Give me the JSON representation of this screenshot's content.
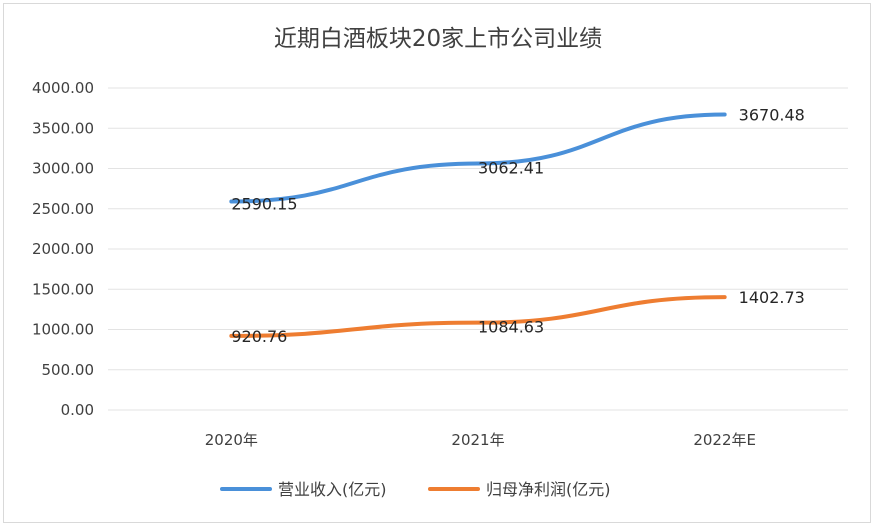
{
  "chart_data": {
    "type": "line",
    "title": "近期白酒板块20家上市公司业绩",
    "categories": [
      "2020年",
      "2021年",
      "2022年E"
    ],
    "ylim": [
      0,
      4000
    ],
    "yticks": [
      "4000.00",
      "3500.00",
      "3000.00",
      "2500.00",
      "2000.00",
      "1500.00",
      "1000.00",
      "500.00",
      "0.00"
    ],
    "grid": true,
    "legend": "bottom",
    "series": [
      {
        "name": "营业收入(亿元)",
        "color": "#4a90d9",
        "values": [
          2590.15,
          3062.41,
          3670.48
        ],
        "labels": [
          "2590.15",
          "3062.41",
          "3670.48"
        ]
      },
      {
        "name": "归母净利润(亿元)",
        "color": "#ee7d31",
        "values": [
          920.76,
          1084.63,
          1402.73
        ],
        "labels": [
          "920.76",
          "1084.63",
          "1402.73"
        ]
      }
    ]
  }
}
